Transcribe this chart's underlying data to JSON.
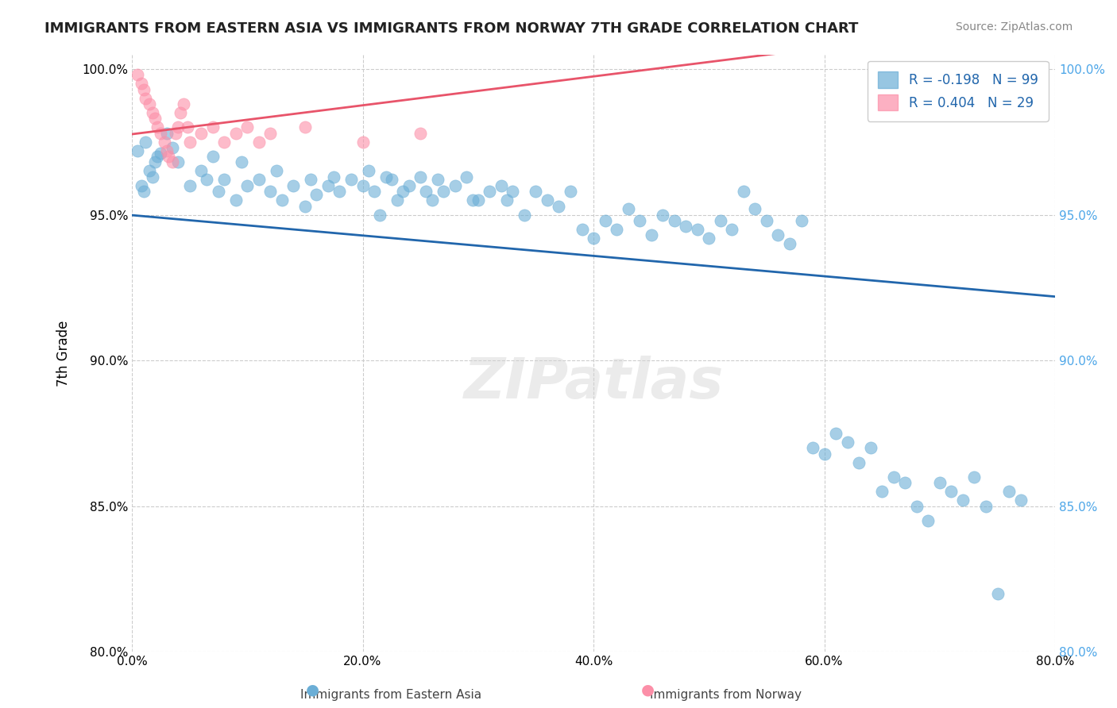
{
  "title": "IMMIGRANTS FROM EASTERN ASIA VS IMMIGRANTS FROM NORWAY 7TH GRADE CORRELATION CHART",
  "source_text": "Source: ZipAtlas.com",
  "xlabel_bottom": "",
  "ylabel": "7th Grade",
  "watermark": "ZIPatlas",
  "legend_label_blue": "Immigrants from Eastern Asia",
  "legend_label_pink": "Immigrants from Norway",
  "R_blue": -0.198,
  "N_blue": 99,
  "R_pink": 0.404,
  "N_pink": 29,
  "xmin": 0.0,
  "xmax": 0.8,
  "ymin": 0.8,
  "ymax": 1.005,
  "yticks": [
    0.8,
    0.85,
    0.9,
    0.95,
    1.0
  ],
  "ytick_labels": [
    "80.0%",
    "85.0%",
    "90.0%",
    "95.0%",
    "100.0%"
  ],
  "xticks": [
    0.0,
    0.2,
    0.4,
    0.6,
    0.8
  ],
  "xtick_labels": [
    "0.0%",
    "20.0%",
    "40.0%",
    "60.0%",
    "80.0%"
  ],
  "blue_color": "#6baed6",
  "pink_color": "#fc8fa8",
  "blue_line_color": "#2166ac",
  "pink_line_color": "#e8546a",
  "grid_color": "#cccccc",
  "background_color": "#ffffff",
  "blue_scatter_x": [
    0.012,
    0.02,
    0.025,
    0.008,
    0.015,
    0.03,
    0.005,
    0.01,
    0.018,
    0.022,
    0.035,
    0.04,
    0.05,
    0.06,
    0.065,
    0.07,
    0.075,
    0.08,
    0.09,
    0.095,
    0.1,
    0.11,
    0.12,
    0.125,
    0.13,
    0.14,
    0.15,
    0.155,
    0.16,
    0.17,
    0.175,
    0.18,
    0.19,
    0.2,
    0.205,
    0.21,
    0.215,
    0.22,
    0.225,
    0.23,
    0.235,
    0.24,
    0.25,
    0.255,
    0.26,
    0.265,
    0.27,
    0.28,
    0.29,
    0.295,
    0.3,
    0.31,
    0.32,
    0.325,
    0.33,
    0.34,
    0.35,
    0.36,
    0.37,
    0.38,
    0.39,
    0.4,
    0.41,
    0.42,
    0.43,
    0.44,
    0.45,
    0.46,
    0.47,
    0.48,
    0.49,
    0.5,
    0.51,
    0.52,
    0.53,
    0.54,
    0.55,
    0.56,
    0.57,
    0.58,
    0.59,
    0.6,
    0.61,
    0.62,
    0.63,
    0.64,
    0.65,
    0.66,
    0.67,
    0.68,
    0.69,
    0.7,
    0.71,
    0.72,
    0.73,
    0.74,
    0.76,
    0.77,
    0.75
  ],
  "blue_scatter_y": [
    0.975,
    0.968,
    0.971,
    0.96,
    0.965,
    0.978,
    0.972,
    0.958,
    0.963,
    0.97,
    0.973,
    0.968,
    0.96,
    0.965,
    0.962,
    0.97,
    0.958,
    0.962,
    0.955,
    0.968,
    0.96,
    0.962,
    0.958,
    0.965,
    0.955,
    0.96,
    0.953,
    0.962,
    0.957,
    0.96,
    0.963,
    0.958,
    0.962,
    0.96,
    0.965,
    0.958,
    0.95,
    0.963,
    0.962,
    0.955,
    0.958,
    0.96,
    0.963,
    0.958,
    0.955,
    0.962,
    0.958,
    0.96,
    0.963,
    0.955,
    0.955,
    0.958,
    0.96,
    0.955,
    0.958,
    0.95,
    0.958,
    0.955,
    0.953,
    0.958,
    0.945,
    0.942,
    0.948,
    0.945,
    0.952,
    0.948,
    0.943,
    0.95,
    0.948,
    0.946,
    0.945,
    0.942,
    0.948,
    0.945,
    0.958,
    0.952,
    0.948,
    0.943,
    0.94,
    0.948,
    0.87,
    0.868,
    0.875,
    0.872,
    0.865,
    0.87,
    0.855,
    0.86,
    0.858,
    0.85,
    0.845,
    0.858,
    0.855,
    0.852,
    0.86,
    0.85,
    0.855,
    0.852,
    0.82
  ],
  "pink_scatter_x": [
    0.005,
    0.008,
    0.01,
    0.012,
    0.015,
    0.018,
    0.02,
    0.022,
    0.025,
    0.028,
    0.03,
    0.032,
    0.035,
    0.038,
    0.04,
    0.042,
    0.045,
    0.048,
    0.05,
    0.06,
    0.07,
    0.08,
    0.09,
    0.1,
    0.11,
    0.12,
    0.15,
    0.2,
    0.25
  ],
  "pink_scatter_y": [
    0.998,
    0.995,
    0.993,
    0.99,
    0.988,
    0.985,
    0.983,
    0.98,
    0.978,
    0.975,
    0.972,
    0.97,
    0.968,
    0.978,
    0.98,
    0.985,
    0.988,
    0.98,
    0.975,
    0.978,
    0.98,
    0.975,
    0.978,
    0.98,
    0.975,
    0.978,
    0.98,
    0.975,
    0.978
  ]
}
